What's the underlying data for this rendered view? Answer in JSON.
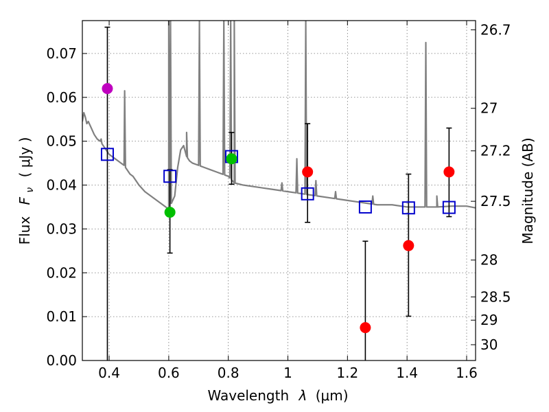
{
  "chart_data": {
    "type": "scatter",
    "xlabel_main": "Wavelength",
    "xlabel_symbol": "λ",
    "xlabel_unit": "(μm)",
    "ylabel_main": "Flux",
    "ylabel_symbol": "F",
    "ylabel_subscript": "ν",
    "ylabel_unit": "( μJy )",
    "y2label": "Magnitude (AB)",
    "xlim": [
      0.31,
      1.63
    ],
    "ylim": [
      0.0,
      0.0775
    ],
    "grid": true,
    "x_ticks": [
      {
        "value": 0.4,
        "label": "0.4"
      },
      {
        "value": 0.6,
        "label": "0.6"
      },
      {
        "value": 0.8,
        "label": "0.8"
      },
      {
        "value": 1.0,
        "label": "1"
      },
      {
        "value": 1.2,
        "label": "1.2"
      },
      {
        "value": 1.4,
        "label": "1.4"
      },
      {
        "value": 1.6,
        "label": "1.6"
      }
    ],
    "y_ticks": [
      {
        "value": 0.0,
        "label": "0.00"
      },
      {
        "value": 0.01,
        "label": "0.01"
      },
      {
        "value": 0.02,
        "label": "0.02"
      },
      {
        "value": 0.03,
        "label": "0.03"
      },
      {
        "value": 0.04,
        "label": "0.04"
      },
      {
        "value": 0.05,
        "label": "0.05"
      },
      {
        "value": 0.06,
        "label": "0.06"
      },
      {
        "value": 0.07,
        "label": "0.07"
      }
    ],
    "y2_ticks": [
      {
        "flux": 0.0754,
        "label": "26.7"
      },
      {
        "flux": 0.0575,
        "label": "27"
      },
      {
        "flux": 0.0478,
        "label": "27.2"
      },
      {
        "flux": 0.0363,
        "label": "27.5"
      },
      {
        "flux": 0.0229,
        "label": "28"
      },
      {
        "flux": 0.0145,
        "label": "28.5"
      },
      {
        "flux": 0.0092,
        "label": "29"
      },
      {
        "flux": 0.0036,
        "label": "30"
      }
    ],
    "colors": {
      "spectrum": "#808080",
      "model_box": "#0000cc",
      "errorbar": "#000000",
      "purple": "#bf00bf",
      "green": "#00bf00",
      "red": "#ff0000"
    },
    "spectrum": {
      "name": "SED model",
      "x": [
        0.31,
        0.315,
        0.32,
        0.325,
        0.33,
        0.34,
        0.35,
        0.36,
        0.37,
        0.38,
        0.39,
        0.4,
        0.41,
        0.42,
        0.43,
        0.44,
        0.45,
        0.46,
        0.47,
        0.48,
        0.5,
        0.52,
        0.54,
        0.56,
        0.58,
        0.6,
        0.62,
        0.63,
        0.64,
        0.65,
        0.66,
        0.67,
        0.68,
        0.7,
        0.72,
        0.74,
        0.76,
        0.78,
        0.8,
        0.82,
        0.85,
        0.9,
        0.95,
        1.0,
        1.05,
        1.1,
        1.15,
        1.2,
        1.25,
        1.3,
        1.35,
        1.4,
        1.45,
        1.5,
        1.55,
        1.6,
        1.63
      ],
      "y": [
        0.0545,
        0.0565,
        0.0555,
        0.054,
        0.0545,
        0.053,
        0.0515,
        0.0505,
        0.05,
        0.049,
        0.048,
        0.047,
        0.0465,
        0.046,
        0.0455,
        0.045,
        0.0445,
        0.0435,
        0.0425,
        0.042,
        0.04,
        0.0385,
        0.0375,
        0.0365,
        0.0355,
        0.0345,
        0.0375,
        0.044,
        0.048,
        0.049,
        0.0465,
        0.0455,
        0.045,
        0.0445,
        0.044,
        0.0435,
        0.043,
        0.0425,
        0.042,
        0.0405,
        0.04,
        0.0395,
        0.039,
        0.0385,
        0.038,
        0.0375,
        0.037,
        0.0365,
        0.036,
        0.0355,
        0.0355,
        0.035,
        0.035,
        0.035,
        0.0352,
        0.0352,
        0.0348
      ],
      "emission_lines": [
        {
          "x": 0.373,
          "peak": 0.0505
        },
        {
          "x": 0.452,
          "peak": 0.0615
        },
        {
          "x": 0.6,
          "peak": 0.0775
        },
        {
          "x": 0.606,
          "peak": 0.0775
        },
        {
          "x": 0.66,
          "peak": 0.052
        },
        {
          "x": 0.703,
          "peak": 0.0775
        },
        {
          "x": 0.785,
          "peak": 0.0775
        },
        {
          "x": 0.808,
          "peak": 0.0775
        },
        {
          "x": 0.82,
          "peak": 0.0775
        },
        {
          "x": 0.98,
          "peak": 0.0405
        },
        {
          "x": 1.03,
          "peak": 0.046
        },
        {
          "x": 1.06,
          "peak": 0.0775
        },
        {
          "x": 1.094,
          "peak": 0.041
        },
        {
          "x": 1.16,
          "peak": 0.0385
        },
        {
          "x": 1.285,
          "peak": 0.0375
        },
        {
          "x": 1.463,
          "peak": 0.0725
        },
        {
          "x": 1.5,
          "peak": 0.0375
        }
      ]
    },
    "series": [
      {
        "name": "model_boxes",
        "marker": "square",
        "color": "model_box",
        "x": [
          0.394,
          0.604,
          0.811,
          1.066,
          1.26,
          1.405,
          1.541
        ],
        "y": [
          0.047,
          0.042,
          0.0465,
          0.038,
          0.035,
          0.0348,
          0.0349
        ]
      },
      {
        "name": "photometry",
        "marker": "circle",
        "points": [
          {
            "x": 0.394,
            "y": 0.062,
            "err_low": 0.0,
            "err_high": 0.076,
            "color": "purple"
          },
          {
            "x": 0.604,
            "y": 0.0338,
            "err_low": 0.0245,
            "err_high": 0.0435,
            "color": "green"
          },
          {
            "x": 0.811,
            "y": 0.046,
            "err_low": 0.0402,
            "err_high": 0.052,
            "color": "green"
          },
          {
            "x": 1.066,
            "y": 0.043,
            "err_low": 0.0315,
            "err_high": 0.054,
            "color": "red"
          },
          {
            "x": 1.26,
            "y": 0.0075,
            "err_low": 0.0,
            "err_high": 0.0272,
            "color": "red"
          },
          {
            "x": 1.405,
            "y": 0.0262,
            "err_low": 0.0101,
            "err_high": 0.0425,
            "color": "red"
          },
          {
            "x": 1.541,
            "y": 0.043,
            "err_low": 0.0328,
            "err_high": 0.053,
            "color": "red"
          }
        ]
      }
    ]
  }
}
